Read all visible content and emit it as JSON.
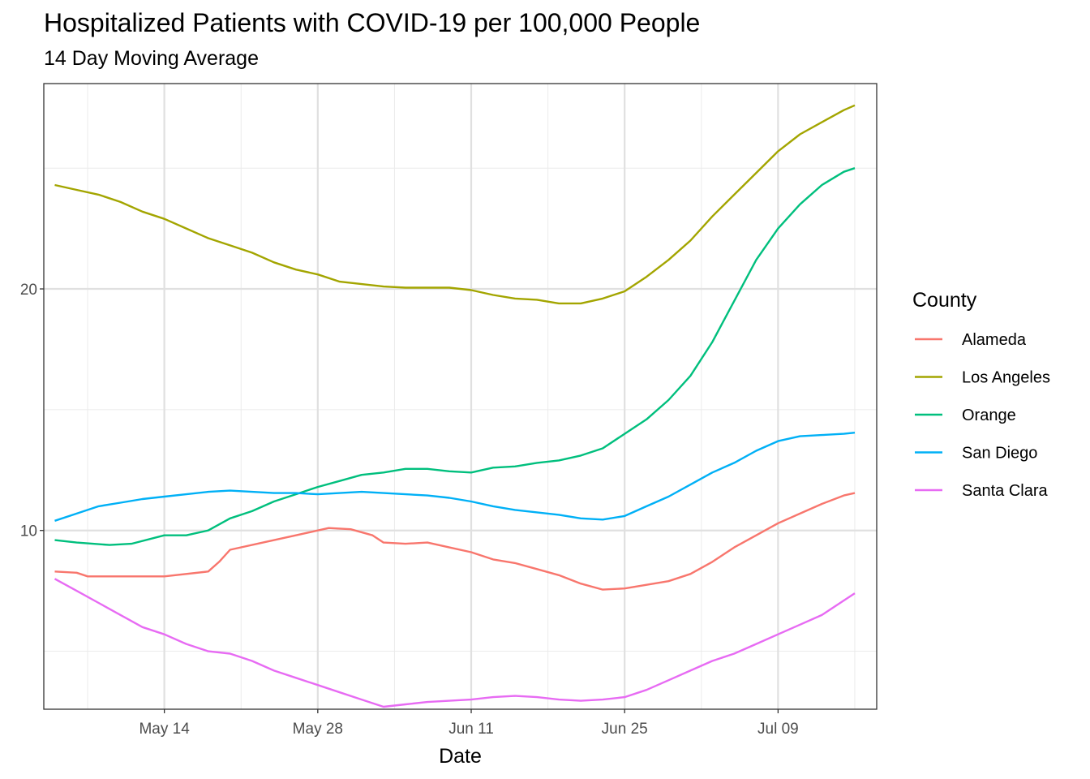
{
  "chart_data": {
    "type": "line",
    "title": "Hospitalized Patients with COVID-19 per 100,000 People",
    "subtitle": "14 Day Moving Average",
    "xlabel": "Date",
    "ylabel": "",
    "x_type": "date",
    "xlim": [
      "2020-05-03",
      "2020-07-18"
    ],
    "ylim": [
      2.6,
      28.5
    ],
    "x_ticks": [
      {
        "date": "2020-05-14",
        "label": "May 14"
      },
      {
        "date": "2020-05-28",
        "label": "May 28"
      },
      {
        "date": "2020-06-11",
        "label": "Jun 11"
      },
      {
        "date": "2020-06-25",
        "label": "Jun 25"
      },
      {
        "date": "2020-07-09",
        "label": "Jul 09"
      }
    ],
    "x_minor_dates": [
      "2020-05-07",
      "2020-05-21",
      "2020-06-04",
      "2020-06-18",
      "2020-07-02",
      "2020-07-16"
    ],
    "y_ticks": [
      10,
      20
    ],
    "y_minor": [
      5,
      15,
      25
    ],
    "grid": true,
    "legend": {
      "title": "County",
      "position": "right"
    },
    "series": [
      {
        "name": "Alameda",
        "color": "#F8766D",
        "points": [
          [
            "2020-05-04",
            8.3
          ],
          [
            "2020-05-06",
            8.25
          ],
          [
            "2020-05-07",
            8.1
          ],
          [
            "2020-05-10",
            8.1
          ],
          [
            "2020-05-14",
            8.1
          ],
          [
            "2020-05-18",
            8.3
          ],
          [
            "2020-05-19",
            8.7
          ],
          [
            "2020-05-20",
            9.2
          ],
          [
            "2020-05-23",
            9.5
          ],
          [
            "2020-05-26",
            9.8
          ],
          [
            "2020-05-28",
            10.0
          ],
          [
            "2020-05-29",
            10.1
          ],
          [
            "2020-05-31",
            10.05
          ],
          [
            "2020-06-02",
            9.8
          ],
          [
            "2020-06-03",
            9.5
          ],
          [
            "2020-06-05",
            9.45
          ],
          [
            "2020-06-07",
            9.5
          ],
          [
            "2020-06-09",
            9.3
          ],
          [
            "2020-06-11",
            9.1
          ],
          [
            "2020-06-13",
            8.8
          ],
          [
            "2020-06-15",
            8.65
          ],
          [
            "2020-06-17",
            8.4
          ],
          [
            "2020-06-19",
            8.15
          ],
          [
            "2020-06-21",
            7.8
          ],
          [
            "2020-06-23",
            7.55
          ],
          [
            "2020-06-25",
            7.6
          ],
          [
            "2020-06-27",
            7.75
          ],
          [
            "2020-06-29",
            7.9
          ],
          [
            "2020-07-01",
            8.2
          ],
          [
            "2020-07-03",
            8.7
          ],
          [
            "2020-07-05",
            9.3
          ],
          [
            "2020-07-07",
            9.8
          ],
          [
            "2020-07-09",
            10.3
          ],
          [
            "2020-07-11",
            10.7
          ],
          [
            "2020-07-13",
            11.1
          ],
          [
            "2020-07-15",
            11.45
          ],
          [
            "2020-07-16",
            11.55
          ]
        ]
      },
      {
        "name": "Los Angeles",
        "color": "#A3A500",
        "points": [
          [
            "2020-05-04",
            24.3
          ],
          [
            "2020-05-06",
            24.1
          ],
          [
            "2020-05-08",
            23.9
          ],
          [
            "2020-05-10",
            23.6
          ],
          [
            "2020-05-12",
            23.2
          ],
          [
            "2020-05-14",
            22.9
          ],
          [
            "2020-05-16",
            22.5
          ],
          [
            "2020-05-18",
            22.1
          ],
          [
            "2020-05-20",
            21.8
          ],
          [
            "2020-05-22",
            21.5
          ],
          [
            "2020-05-24",
            21.1
          ],
          [
            "2020-05-26",
            20.8
          ],
          [
            "2020-05-28",
            20.6
          ],
          [
            "2020-05-30",
            20.3
          ],
          [
            "2020-06-01",
            20.2
          ],
          [
            "2020-06-03",
            20.1
          ],
          [
            "2020-06-05",
            20.05
          ],
          [
            "2020-06-07",
            20.05
          ],
          [
            "2020-06-09",
            20.05
          ],
          [
            "2020-06-11",
            19.95
          ],
          [
            "2020-06-13",
            19.75
          ],
          [
            "2020-06-15",
            19.6
          ],
          [
            "2020-06-17",
            19.55
          ],
          [
            "2020-06-19",
            19.4
          ],
          [
            "2020-06-21",
            19.4
          ],
          [
            "2020-06-23",
            19.6
          ],
          [
            "2020-06-25",
            19.9
          ],
          [
            "2020-06-27",
            20.5
          ],
          [
            "2020-06-29",
            21.2
          ],
          [
            "2020-07-01",
            22.0
          ],
          [
            "2020-07-03",
            23.0
          ],
          [
            "2020-07-05",
            23.9
          ],
          [
            "2020-07-07",
            24.8
          ],
          [
            "2020-07-09",
            25.7
          ],
          [
            "2020-07-11",
            26.4
          ],
          [
            "2020-07-13",
            26.9
          ],
          [
            "2020-07-15",
            27.4
          ],
          [
            "2020-07-16",
            27.6
          ]
        ]
      },
      {
        "name": "Orange",
        "color": "#00BF7D",
        "points": [
          [
            "2020-05-04",
            9.6
          ],
          [
            "2020-05-06",
            9.5
          ],
          [
            "2020-05-09",
            9.4
          ],
          [
            "2020-05-11",
            9.45
          ],
          [
            "2020-05-14",
            9.8
          ],
          [
            "2020-05-16",
            9.8
          ],
          [
            "2020-05-18",
            10.0
          ],
          [
            "2020-05-20",
            10.5
          ],
          [
            "2020-05-22",
            10.8
          ],
          [
            "2020-05-24",
            11.2
          ],
          [
            "2020-05-26",
            11.5
          ],
          [
            "2020-05-28",
            11.8
          ],
          [
            "2020-05-30",
            12.05
          ],
          [
            "2020-06-01",
            12.3
          ],
          [
            "2020-06-03",
            12.4
          ],
          [
            "2020-06-05",
            12.55
          ],
          [
            "2020-06-07",
            12.55
          ],
          [
            "2020-06-09",
            12.45
          ],
          [
            "2020-06-11",
            12.4
          ],
          [
            "2020-06-13",
            12.6
          ],
          [
            "2020-06-15",
            12.65
          ],
          [
            "2020-06-17",
            12.8
          ],
          [
            "2020-06-19",
            12.9
          ],
          [
            "2020-06-21",
            13.1
          ],
          [
            "2020-06-23",
            13.4
          ],
          [
            "2020-06-25",
            14.0
          ],
          [
            "2020-06-27",
            14.6
          ],
          [
            "2020-06-29",
            15.4
          ],
          [
            "2020-07-01",
            16.4
          ],
          [
            "2020-07-03",
            17.8
          ],
          [
            "2020-07-05",
            19.5
          ],
          [
            "2020-07-07",
            21.2
          ],
          [
            "2020-07-09",
            22.5
          ],
          [
            "2020-07-11",
            23.5
          ],
          [
            "2020-07-13",
            24.3
          ],
          [
            "2020-07-15",
            24.85
          ],
          [
            "2020-07-16",
            25.0
          ]
        ]
      },
      {
        "name": "San Diego",
        "color": "#00B0F6",
        "points": [
          [
            "2020-05-04",
            10.4
          ],
          [
            "2020-05-06",
            10.7
          ],
          [
            "2020-05-08",
            11.0
          ],
          [
            "2020-05-10",
            11.15
          ],
          [
            "2020-05-12",
            11.3
          ],
          [
            "2020-05-14",
            11.4
          ],
          [
            "2020-05-16",
            11.5
          ],
          [
            "2020-05-18",
            11.6
          ],
          [
            "2020-05-20",
            11.65
          ],
          [
            "2020-05-22",
            11.6
          ],
          [
            "2020-05-24",
            11.55
          ],
          [
            "2020-05-26",
            11.55
          ],
          [
            "2020-05-28",
            11.5
          ],
          [
            "2020-05-30",
            11.55
          ],
          [
            "2020-06-01",
            11.6
          ],
          [
            "2020-06-03",
            11.55
          ],
          [
            "2020-06-05",
            11.5
          ],
          [
            "2020-06-07",
            11.45
          ],
          [
            "2020-06-09",
            11.35
          ],
          [
            "2020-06-11",
            11.2
          ],
          [
            "2020-06-13",
            11.0
          ],
          [
            "2020-06-15",
            10.85
          ],
          [
            "2020-06-17",
            10.75
          ],
          [
            "2020-06-19",
            10.65
          ],
          [
            "2020-06-21",
            10.5
          ],
          [
            "2020-06-23",
            10.45
          ],
          [
            "2020-06-25",
            10.6
          ],
          [
            "2020-06-27",
            11.0
          ],
          [
            "2020-06-29",
            11.4
          ],
          [
            "2020-07-01",
            11.9
          ],
          [
            "2020-07-03",
            12.4
          ],
          [
            "2020-07-05",
            12.8
          ],
          [
            "2020-07-07",
            13.3
          ],
          [
            "2020-07-09",
            13.7
          ],
          [
            "2020-07-11",
            13.9
          ],
          [
            "2020-07-13",
            13.95
          ],
          [
            "2020-07-15",
            14.0
          ],
          [
            "2020-07-16",
            14.05
          ]
        ]
      },
      {
        "name": "Santa Clara",
        "color": "#E76BF3",
        "points": [
          [
            "2020-05-04",
            8.0
          ],
          [
            "2020-05-06",
            7.5
          ],
          [
            "2020-05-08",
            7.0
          ],
          [
            "2020-05-10",
            6.5
          ],
          [
            "2020-05-12",
            6.0
          ],
          [
            "2020-05-14",
            5.7
          ],
          [
            "2020-05-16",
            5.3
          ],
          [
            "2020-05-18",
            5.0
          ],
          [
            "2020-05-20",
            4.9
          ],
          [
            "2020-05-22",
            4.6
          ],
          [
            "2020-05-24",
            4.2
          ],
          [
            "2020-05-26",
            3.9
          ],
          [
            "2020-05-28",
            3.6
          ],
          [
            "2020-05-30",
            3.3
          ],
          [
            "2020-06-01",
            3.0
          ],
          [
            "2020-06-03",
            2.7
          ],
          [
            "2020-06-05",
            2.8
          ],
          [
            "2020-06-07",
            2.9
          ],
          [
            "2020-06-09",
            2.95
          ],
          [
            "2020-06-11",
            3.0
          ],
          [
            "2020-06-13",
            3.1
          ],
          [
            "2020-06-15",
            3.15
          ],
          [
            "2020-06-17",
            3.1
          ],
          [
            "2020-06-19",
            3.0
          ],
          [
            "2020-06-21",
            2.95
          ],
          [
            "2020-06-23",
            3.0
          ],
          [
            "2020-06-25",
            3.1
          ],
          [
            "2020-06-27",
            3.4
          ],
          [
            "2020-06-29",
            3.8
          ],
          [
            "2020-07-01",
            4.2
          ],
          [
            "2020-07-03",
            4.6
          ],
          [
            "2020-07-05",
            4.9
          ],
          [
            "2020-07-07",
            5.3
          ],
          [
            "2020-07-09",
            5.7
          ],
          [
            "2020-07-11",
            6.1
          ],
          [
            "2020-07-13",
            6.5
          ],
          [
            "2020-07-15",
            7.1
          ],
          [
            "2020-07-16",
            7.4
          ]
        ]
      }
    ]
  }
}
